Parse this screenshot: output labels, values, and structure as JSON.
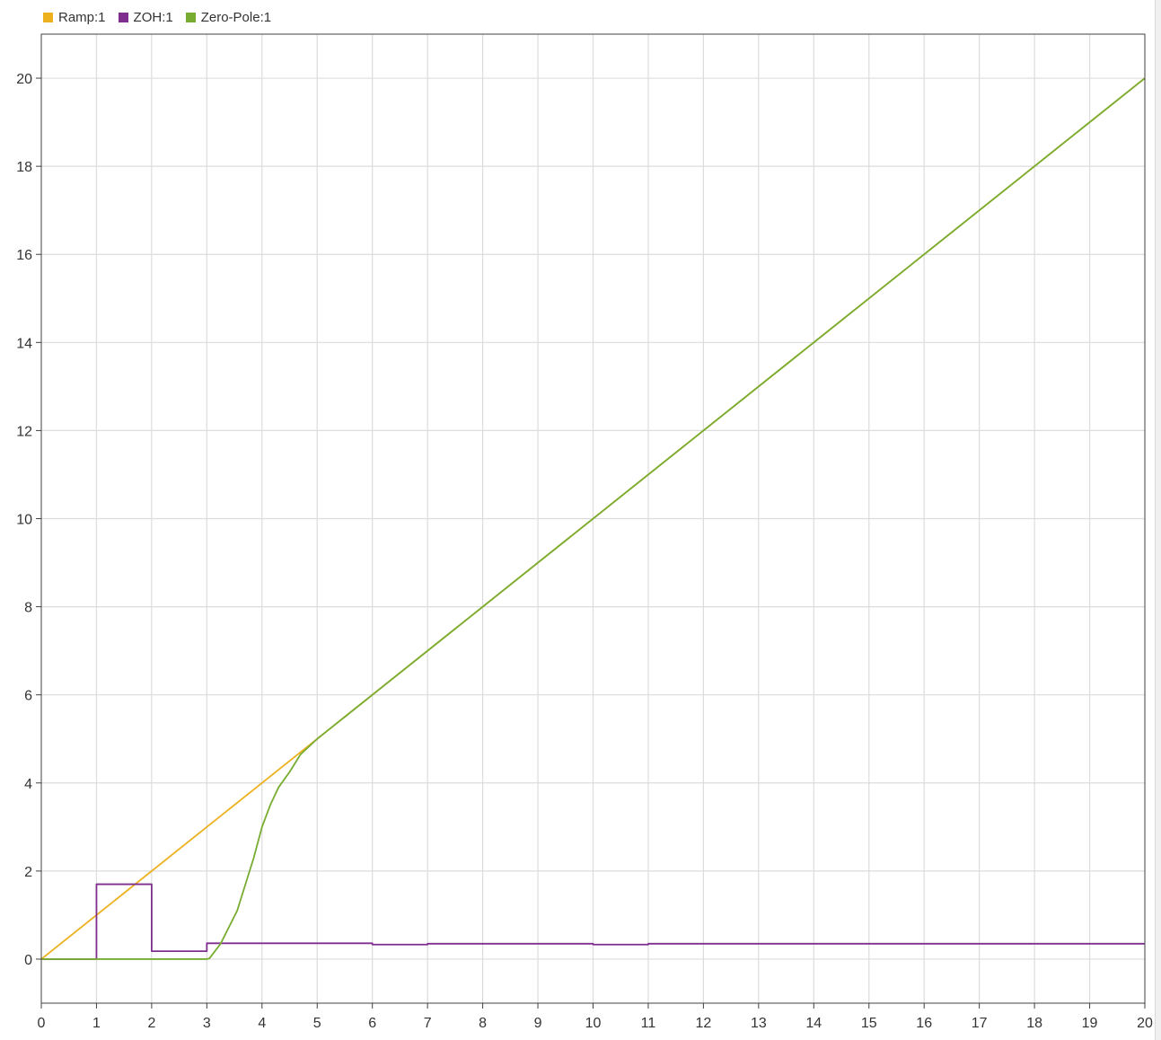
{
  "legend": {
    "items": [
      {
        "label": "Ramp:1",
        "color": "#edb120"
      },
      {
        "label": "ZOH:1",
        "color": "#7e2f8e"
      },
      {
        "label": "Zero-Pole:1",
        "color": "#77ac30"
      }
    ]
  },
  "chart_data": {
    "type": "line",
    "title": "",
    "xlabel": "",
    "ylabel": "",
    "xlim": [
      0,
      20
    ],
    "ylim": [
      -1,
      21
    ],
    "grid": true,
    "legend_position": "top-left",
    "x_ticks": [
      0,
      1,
      2,
      3,
      4,
      5,
      6,
      7,
      8,
      9,
      10,
      11,
      12,
      13,
      14,
      15,
      16,
      17,
      18,
      19,
      20
    ],
    "y_ticks": [
      0,
      2,
      4,
      6,
      8,
      10,
      12,
      14,
      16,
      18,
      20
    ],
    "series": [
      {
        "name": "Ramp:1",
        "color": "#edb120",
        "step": false,
        "points": [
          [
            0,
            0
          ],
          [
            20,
            20
          ]
        ]
      },
      {
        "name": "ZOH:1",
        "color": "#7e2f8e",
        "step": true,
        "points": [
          [
            0,
            0
          ],
          [
            1,
            1.7
          ],
          [
            2,
            0.18
          ],
          [
            3,
            0.36
          ],
          [
            6,
            0.33
          ],
          [
            7,
            0.35
          ],
          [
            10,
            0.33
          ],
          [
            11,
            0.35
          ],
          [
            20,
            0.35
          ]
        ]
      },
      {
        "name": "Zero-Pole:1",
        "color": "#77ac30",
        "step": false,
        "points": [
          [
            0,
            0
          ],
          [
            3,
            0
          ],
          [
            3.05,
            0.02
          ],
          [
            3.25,
            0.35
          ],
          [
            3.55,
            1.1
          ],
          [
            3.85,
            2.3
          ],
          [
            4.0,
            3.0
          ],
          [
            4.15,
            3.5
          ],
          [
            4.3,
            3.9
          ],
          [
            4.5,
            4.25
          ],
          [
            4.7,
            4.65
          ],
          [
            5.0,
            5.0
          ],
          [
            6,
            6
          ],
          [
            20,
            20
          ]
        ]
      }
    ]
  }
}
